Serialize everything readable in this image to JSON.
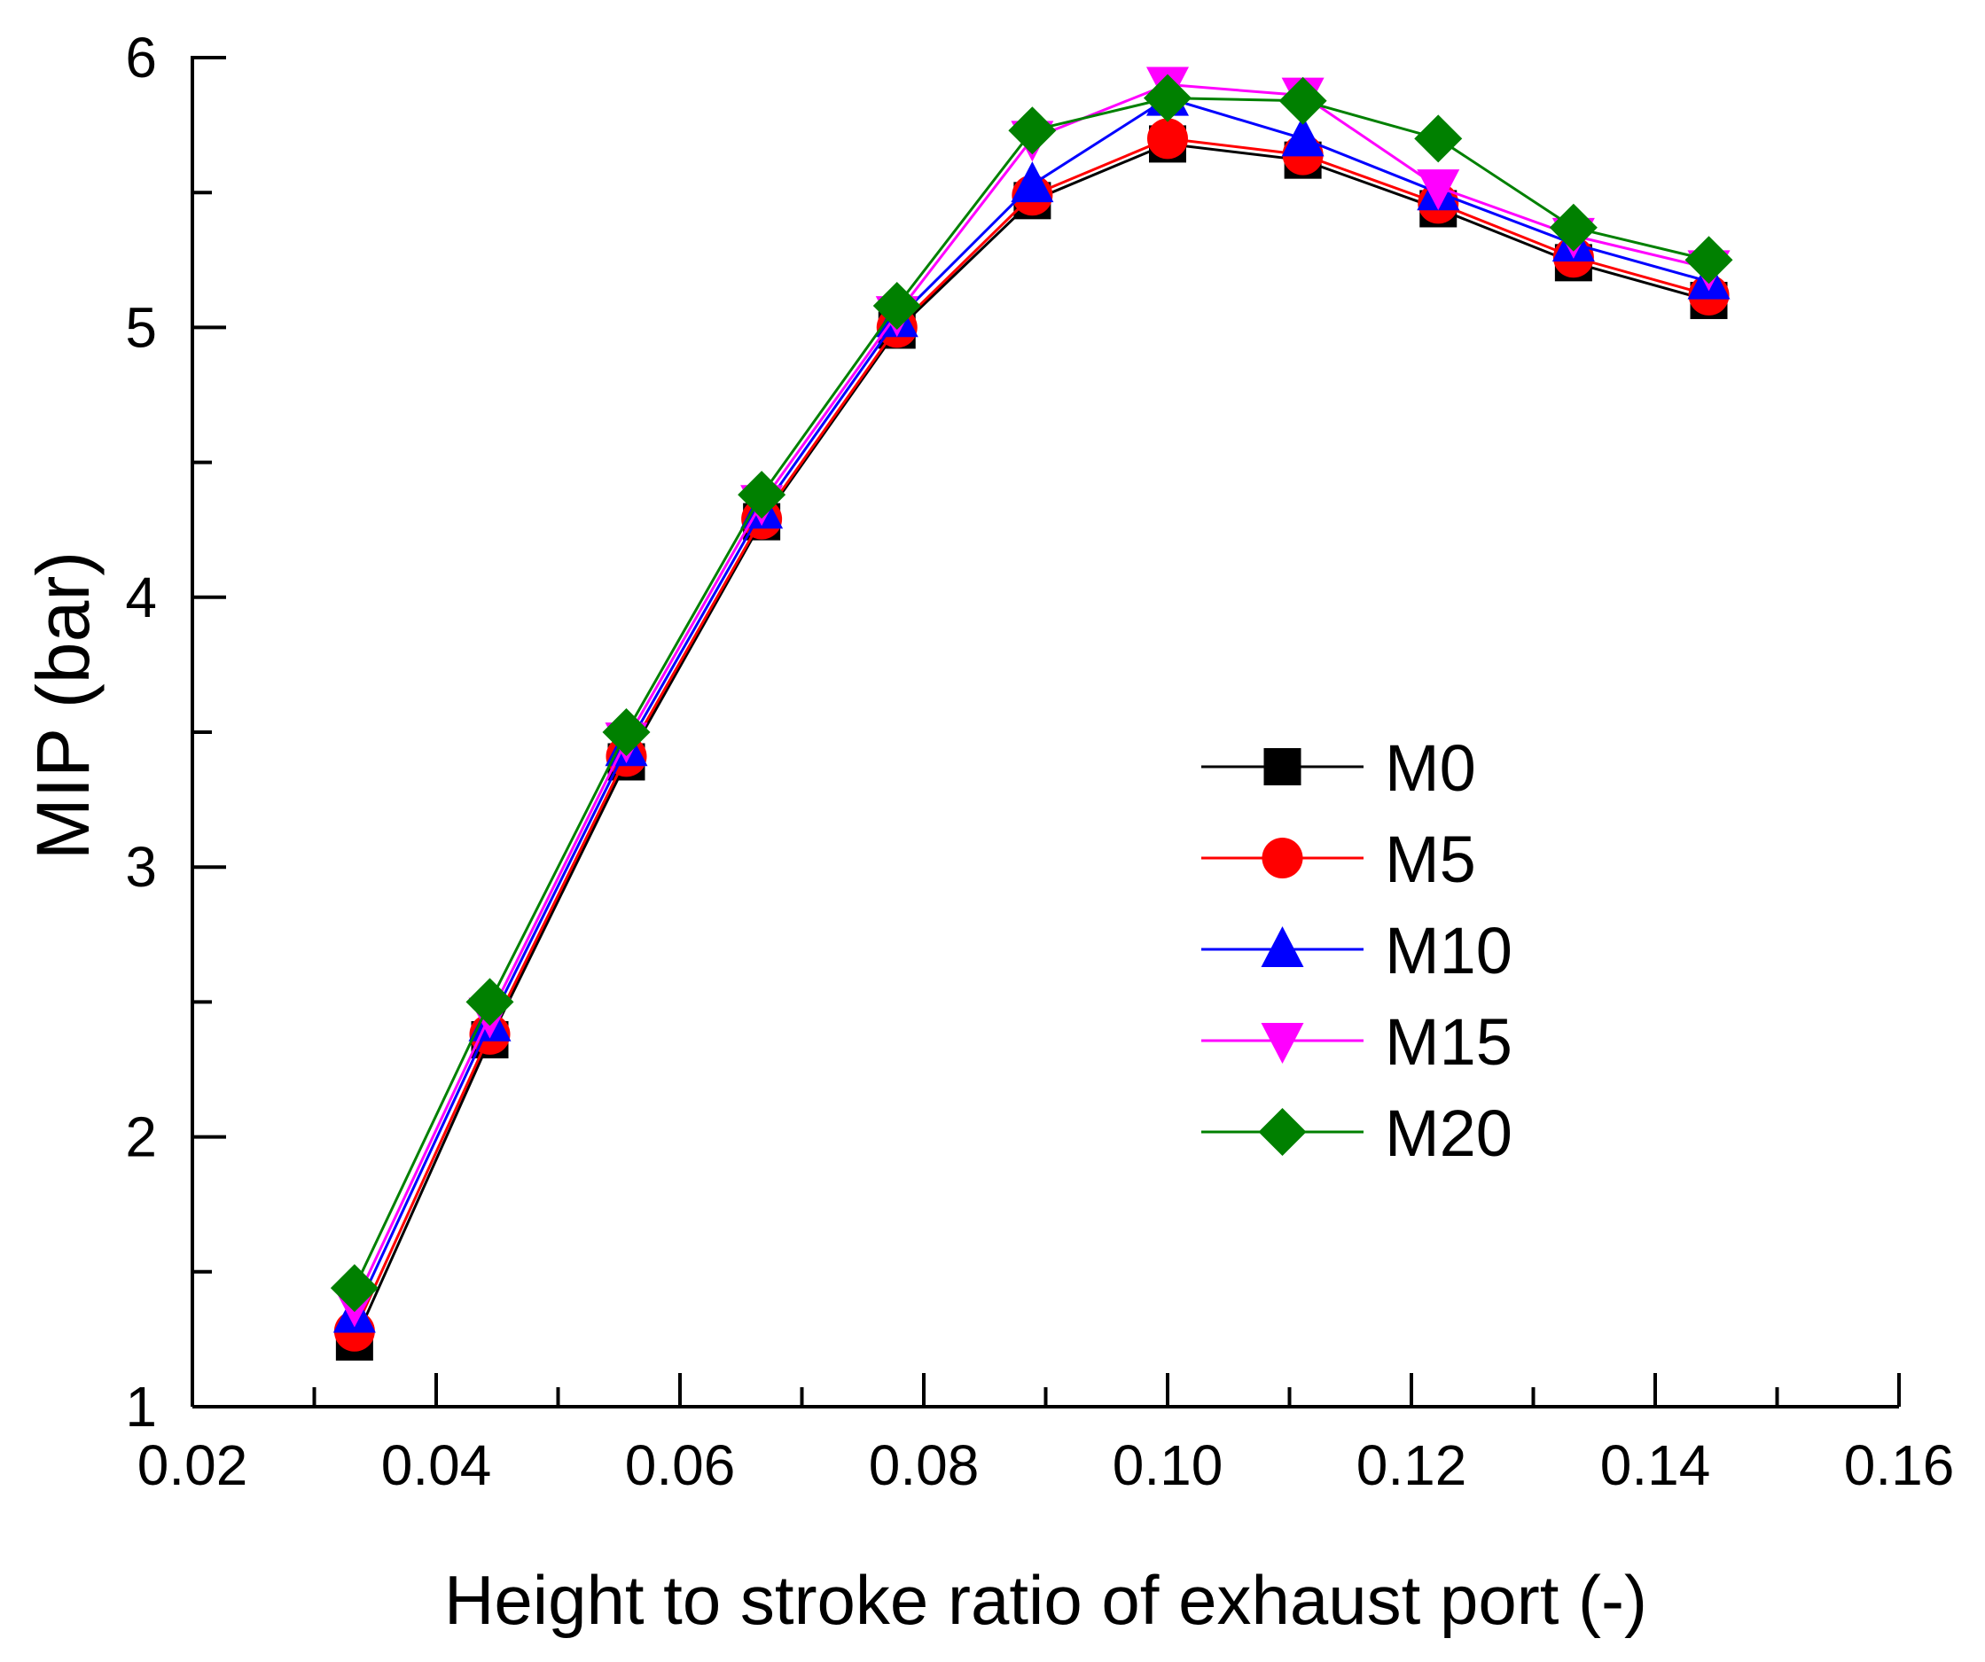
{
  "chart_data": {
    "type": "line",
    "xlabel": "Height to stroke ratio of exhaust port (-)",
    "ylabel": "MIP (bar)",
    "xlim": [
      0.02,
      0.16
    ],
    "ylim": [
      1,
      6
    ],
    "xticks": [
      0.02,
      0.04,
      0.06,
      0.08,
      0.1,
      0.12,
      0.14,
      0.16
    ],
    "xtick_labels": [
      "0.02",
      "0.04",
      "0.06",
      "0.08",
      "0.10",
      "0.12",
      "0.14",
      "0.16"
    ],
    "yticks": [
      1,
      2,
      3,
      4,
      5,
      6
    ],
    "ytick_labels": [
      "1",
      "2",
      "3",
      "4",
      "5",
      "6"
    ],
    "legend_position": "center-right",
    "x": [
      0.0333,
      0.0444,
      0.0556,
      0.0667,
      0.0778,
      0.0889,
      0.1,
      0.1111,
      0.1222,
      0.1333,
      0.1444
    ],
    "series": [
      {
        "name": "M0",
        "color": "#000000",
        "marker": "square",
        "values": [
          1.24,
          2.36,
          3.39,
          4.28,
          4.99,
          5.47,
          5.68,
          5.62,
          5.44,
          5.24,
          5.1
        ]
      },
      {
        "name": "M5",
        "color": "#ff0000",
        "marker": "circle",
        "values": [
          1.28,
          2.38,
          3.41,
          4.29,
          5.0,
          5.49,
          5.7,
          5.64,
          5.46,
          5.26,
          5.12
        ]
      },
      {
        "name": "M10",
        "color": "#0000ff",
        "marker": "triangle-up",
        "values": [
          1.34,
          2.42,
          3.44,
          4.32,
          5.03,
          5.53,
          5.85,
          5.7,
          5.5,
          5.31,
          5.17
        ]
      },
      {
        "name": "M15",
        "color": "#ff00ff",
        "marker": "triangle-down",
        "values": [
          1.38,
          2.45,
          3.47,
          4.35,
          5.05,
          5.7,
          5.9,
          5.86,
          5.52,
          5.34,
          5.22
        ]
      },
      {
        "name": "M20",
        "color": "#008000",
        "marker": "diamond",
        "values": [
          1.44,
          2.5,
          3.5,
          4.38,
          5.08,
          5.73,
          5.85,
          5.84,
          5.7,
          5.37,
          5.25
        ]
      }
    ]
  }
}
